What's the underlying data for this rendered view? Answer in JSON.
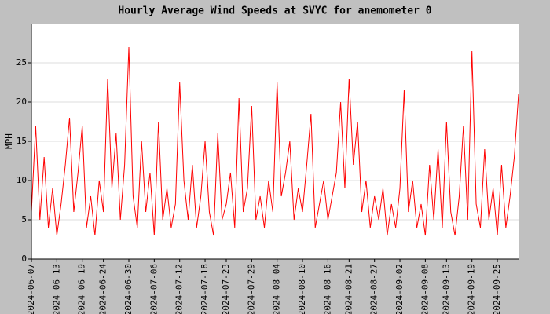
{
  "chart_data": {
    "type": "line",
    "title": "Hourly Average Wind Speeds at SVYC for anemometer 0",
    "y_label": "MPH",
    "x": [
      "2024-06-07",
      "2024-06-08",
      "2024-06-09",
      "2024-06-10",
      "2024-06-11",
      "2024-06-12",
      "2024-06-13",
      "2024-06-14",
      "2024-06-15",
      "2024-06-16",
      "2024-06-17",
      "2024-06-18",
      "2024-06-19",
      "2024-06-20",
      "2024-06-21",
      "2024-06-22",
      "2024-06-23",
      "2024-06-24",
      "2024-06-25",
      "2024-06-26",
      "2024-06-27",
      "2024-06-28",
      "2024-06-29",
      "2024-06-30",
      "2024-07-01",
      "2024-07-02",
      "2024-07-03",
      "2024-07-04",
      "2024-07-05",
      "2024-07-06",
      "2024-07-07",
      "2024-07-08",
      "2024-07-09",
      "2024-07-10",
      "2024-07-11",
      "2024-07-12",
      "2024-07-13",
      "2024-07-14",
      "2024-07-15",
      "2024-07-16",
      "2024-07-17",
      "2024-07-18",
      "2024-07-19",
      "2024-07-20",
      "2024-07-21",
      "2024-07-22",
      "2024-07-23",
      "2024-07-24",
      "2024-07-25",
      "2024-07-26",
      "2024-07-27",
      "2024-07-28",
      "2024-07-29",
      "2024-07-30",
      "2024-07-31",
      "2024-08-01",
      "2024-08-02",
      "2024-08-03",
      "2024-08-04",
      "2024-08-05",
      "2024-08-06",
      "2024-08-07",
      "2024-08-08",
      "2024-08-09",
      "2024-08-10",
      "2024-08-11",
      "2024-08-12",
      "2024-08-13",
      "2024-08-14",
      "2024-08-15",
      "2024-08-16",
      "2024-08-17",
      "2024-08-18",
      "2024-08-19",
      "2024-08-20",
      "2024-08-21",
      "2024-08-22",
      "2024-08-23",
      "2024-08-24",
      "2024-08-25",
      "2024-08-26",
      "2024-08-27",
      "2024-08-28",
      "2024-08-29",
      "2024-08-30",
      "2024-08-31",
      "2024-09-01",
      "2024-09-02",
      "2024-09-03",
      "2024-09-04",
      "2024-09-05",
      "2024-09-06",
      "2024-09-07",
      "2024-09-08",
      "2024-09-09",
      "2024-09-10",
      "2024-09-11",
      "2024-09-12",
      "2024-09-13",
      "2024-09-14",
      "2024-09-15",
      "2024-09-16",
      "2024-09-17",
      "2024-09-18",
      "2024-09-19",
      "2024-09-20",
      "2024-09-21",
      "2024-09-22",
      "2024-09-23",
      "2024-09-24",
      "2024-09-25",
      "2024-09-26",
      "2024-09-27",
      "2024-09-28",
      "2024-09-29",
      "2024-09-30"
    ],
    "values": [
      6,
      17,
      5,
      13,
      4,
      9,
      3,
      7,
      12,
      18,
      6,
      11,
      17,
      4,
      8,
      3,
      10,
      6,
      23,
      9,
      16,
      5,
      12,
      27,
      8,
      4,
      15,
      6,
      11,
      3,
      17.5,
      5,
      9,
      4,
      7,
      22.5,
      10,
      5,
      12,
      4,
      8,
      15,
      6,
      3,
      16,
      5,
      7,
      11,
      4,
      20.5,
      6,
      9,
      19.5,
      5,
      8,
      4,
      10,
      6,
      22.5,
      8,
      11,
      15,
      5,
      9,
      6,
      12,
      18.5,
      4,
      7,
      10,
      5,
      8,
      11,
      20,
      9,
      23,
      12,
      17.5,
      6,
      10,
      4,
      8,
      5,
      9,
      3,
      7,
      4,
      9,
      21.5,
      6,
      10,
      4,
      7,
      3,
      12,
      5,
      14,
      4,
      17.5,
      6,
      3,
      8,
      17,
      5,
      26.5,
      7,
      4,
      14,
      5,
      9,
      3,
      12,
      4,
      8,
      13,
      21
    ],
    "color": "#ff0000",
    "xlim": [
      "2024-06-07",
      "2024-09-30"
    ],
    "xticks": [
      "2024-06-07",
      "2024-06-13",
      "2024-06-19",
      "2024-06-24",
      "2024-06-30",
      "2024-07-06",
      "2024-07-12",
      "2024-07-18",
      "2024-07-23",
      "2024-07-29",
      "2024-08-04",
      "2024-08-10",
      "2024-08-16",
      "2024-08-21",
      "2024-08-27",
      "2024-09-02",
      "2024-09-08",
      "2024-09-13",
      "2024-09-19",
      "2024-09-25"
    ],
    "ylim": [
      0,
      30
    ],
    "yticks": [
      0,
      5,
      10,
      15,
      20,
      25
    ],
    "grid": true
  }
}
